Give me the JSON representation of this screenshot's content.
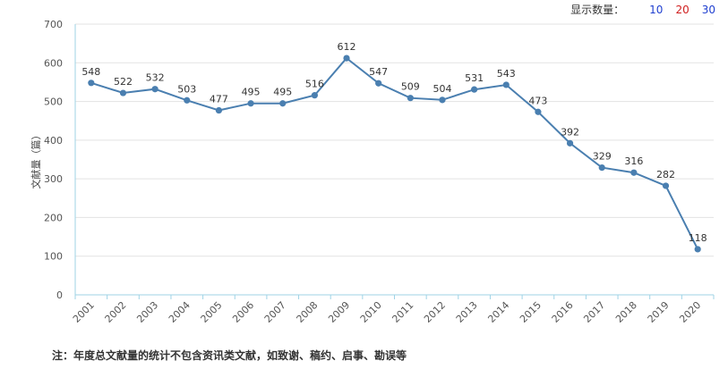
{
  "selector": {
    "label": "显示数量：",
    "options": [
      {
        "label": "10",
        "color": "#1f3fd0"
      },
      {
        "label": "20",
        "color": "#d02020"
      },
      {
        "label": "30",
        "color": "#1f3fd0"
      }
    ]
  },
  "note": "注：年度总文献量的统计不包含资讯类文献，如致谢、稿约、启事、勘误等",
  "chart_data": {
    "type": "line",
    "title": "",
    "ylabel": "文献量（篇）",
    "xlabel": "",
    "ylim": [
      0,
      700
    ],
    "yticks": [
      0,
      100,
      200,
      300,
      400,
      500,
      600,
      700
    ],
    "grid": true,
    "line_color": "#4a7fb0",
    "x": [
      "2001",
      "2002",
      "2003",
      "2004",
      "2005",
      "2006",
      "2007",
      "2008",
      "2009",
      "2010",
      "2011",
      "2012",
      "2013",
      "2014",
      "2015",
      "2016",
      "2017",
      "2018",
      "2019",
      "2020"
    ],
    "values": [
      548,
      522,
      532,
      503,
      477,
      495,
      495,
      516,
      612,
      547,
      509,
      504,
      531,
      543,
      473,
      392,
      329,
      316,
      282,
      118
    ]
  }
}
